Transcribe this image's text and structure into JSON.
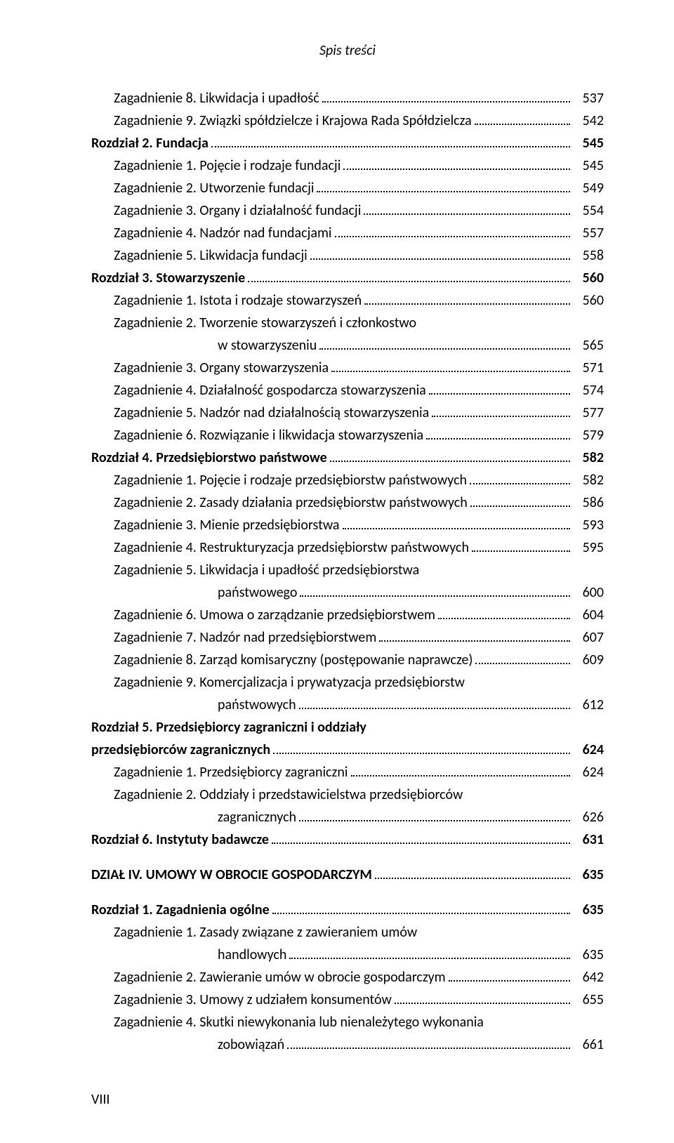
{
  "runningHead": "Spis treści",
  "folio": "VIII",
  "entries": [
    {
      "text": "Zagadnienie 8. Likwidacja i upadłość",
      "page": "537",
      "indent": 1,
      "bold": false
    },
    {
      "text": "Zagadnienie 9. Związki spółdzielcze i Krajowa Rada Spółdzielcza",
      "page": "542",
      "indent": 1,
      "bold": false
    },
    {
      "text": "Rozdział 2. Fundacja",
      "page": "545",
      "indent": 0,
      "bold": true
    },
    {
      "text": "Zagadnienie 1. Pojęcie i rodzaje fundacji",
      "page": "545",
      "indent": 1,
      "bold": false
    },
    {
      "text": "Zagadnienie 2. Utworzenie fundacji",
      "page": "549",
      "indent": 1,
      "bold": false
    },
    {
      "text": "Zagadnienie 3. Organy i działalność fundacji",
      "page": "554",
      "indent": 1,
      "bold": false
    },
    {
      "text": "Zagadnienie 4. Nadzór nad fundacjami",
      "page": "557",
      "indent": 1,
      "bold": false
    },
    {
      "text": "Zagadnienie 5. Likwidacja fundacji",
      "page": "558",
      "indent": 1,
      "bold": false
    },
    {
      "text": "Rozdział 3. Stowarzyszenie",
      "page": "560",
      "indent": 0,
      "bold": true
    },
    {
      "text": "Zagadnienie 1. Istota i rodzaje stowarzyszeń",
      "page": "560",
      "indent": 1,
      "bold": false
    },
    {
      "text": "Zagadnienie 2. Tworzenie stowarzyszeń i członkostwo",
      "cont": "w stowarzyszeniu",
      "page": "565",
      "indent": 1,
      "bold": false
    },
    {
      "text": "Zagadnienie 3. Organy stowarzyszenia",
      "page": "571",
      "indent": 1,
      "bold": false
    },
    {
      "text": "Zagadnienie 4. Działalność gospodarcza stowarzyszenia",
      "page": "574",
      "indent": 1,
      "bold": false
    },
    {
      "text": "Zagadnienie 5. Nadzór nad działalnością stowarzyszenia",
      "page": "577",
      "indent": 1,
      "bold": false
    },
    {
      "text": "Zagadnienie 6. Rozwiązanie i likwidacja stowarzyszenia",
      "page": "579",
      "indent": 1,
      "bold": false
    },
    {
      "text": "Rozdział 4. Przedsiębiorstwo państwowe",
      "page": "582",
      "indent": 0,
      "bold": true
    },
    {
      "text": "Zagadnienie 1. Pojęcie i rodzaje przedsiębiorstw państwowych",
      "page": "582",
      "indent": 1,
      "bold": false
    },
    {
      "text": "Zagadnienie 2. Zasady działania przedsiębiorstw państwowych",
      "page": "586",
      "indent": 1,
      "bold": false
    },
    {
      "text": "Zagadnienie 3. Mienie przedsiębiorstwa",
      "page": "593",
      "indent": 1,
      "bold": false
    },
    {
      "text": "Zagadnienie 4. Restrukturyzacja przedsiębiorstw państwowych",
      "page": "595",
      "indent": 1,
      "bold": false
    },
    {
      "text": "Zagadnienie 5. Likwidacja i upadłość przedsiębiorstwa",
      "cont": "państwowego",
      "page": "600",
      "indent": 1,
      "bold": false
    },
    {
      "text": "Zagadnienie 6. Umowa o zarządzanie przedsiębiorstwem",
      "page": "604",
      "indent": 1,
      "bold": false
    },
    {
      "text": "Zagadnienie 7. Nadzór nad przedsiębiorstwem",
      "page": "607",
      "indent": 1,
      "bold": false
    },
    {
      "text": "Zagadnienie 8. Zarząd komisaryczny (postępowanie naprawcze)",
      "page": "609",
      "indent": 1,
      "bold": false
    },
    {
      "text": "Zagadnienie 9. Komercjalizacja i prywatyzacja przedsiębiorstw",
      "cont": "państwowych",
      "page": "612",
      "indent": 1,
      "bold": false
    },
    {
      "text": "Rozdział 5. Przedsiębiorcy zagraniczni i oddziały",
      "indent": 0,
      "bold": true,
      "noPage": true
    },
    {
      "text": "przedsiębiorców zagranicznych",
      "page": "624",
      "indent": 0,
      "bold": true
    },
    {
      "text": "Zagadnienie 1. Przedsiębiorcy zagraniczni",
      "page": "624",
      "indent": 1,
      "bold": false
    },
    {
      "text": "Zagadnienie 2. Oddziały i przedstawicielstwa przedsiębiorców",
      "cont": "zagranicznych",
      "page": "626",
      "indent": 1,
      "bold": false
    },
    {
      "text": "Rozdział 6. Instytuty badawcze",
      "page": "631",
      "indent": 0,
      "bold": true
    },
    {
      "text": "DZIAŁ IV. UMOWY W OBROCIE GOSPODARCZYM",
      "page": "635",
      "indent": 0,
      "bold": true,
      "gapBefore": true
    },
    {
      "text": "Rozdział 1. Zagadnienia ogólne",
      "page": "635",
      "indent": 0,
      "bold": true,
      "gapBefore": true
    },
    {
      "text": "Zagadnienie 1. Zasady związane z zawieraniem umów",
      "cont": "handlowych",
      "page": "635",
      "indent": 1,
      "bold": false
    },
    {
      "text": "Zagadnienie 2. Zawieranie umów w obrocie gospodarczym",
      "page": "642",
      "indent": 1,
      "bold": false
    },
    {
      "text": "Zagadnienie 3. Umowy z udziałem konsumentów",
      "page": "655",
      "indent": 1,
      "bold": false
    },
    {
      "text": "Zagadnienie 4. Skutki niewykonania lub nienależytego wykonania",
      "cont": "zobowiązań",
      "page": "661",
      "indent": 1,
      "bold": false
    }
  ]
}
